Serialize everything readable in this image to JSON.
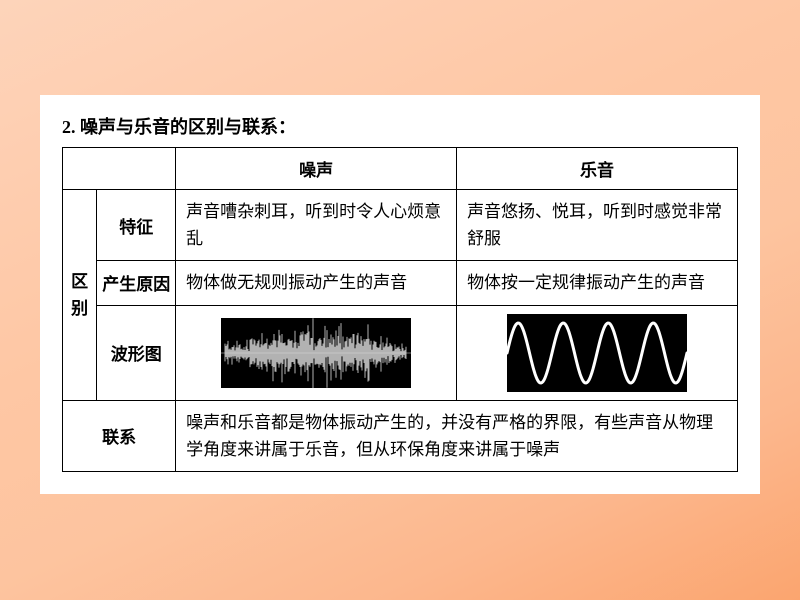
{
  "title": "2. 噪声与乐音的区别与联系：",
  "table": {
    "headers": {
      "col1": "噪声",
      "col2": "乐音"
    },
    "qubie_label": "区别",
    "rows": {
      "feature": {
        "label": "特征",
        "noise": "声音嘈杂刺耳，听到时令人心烦意乱",
        "music": "声音悠扬、悦耳，听到时感觉非常舒服"
      },
      "cause": {
        "label": "产生原因",
        "noise": "物体做无规则振动产生的声音",
        "music": "物体按一定规律振动产生的声音"
      },
      "wave": {
        "label": "波形图"
      },
      "relation": {
        "label": "联系",
        "text": "噪声和乐音都是物体振动产生的，并没有严格的界限，有些声音从物理学角度来讲属于乐音，但从环保角度来讲属于噪声"
      }
    }
  },
  "style": {
    "noise_wave": {
      "bg": "#000000",
      "stroke": "#dcdcdc"
    },
    "sine_wave": {
      "bg": "#000000",
      "stroke": "#ffffff",
      "stroke_width": 3,
      "cycles": 4,
      "amplitude": 30,
      "ymid": 39,
      "width": 180,
      "height": 78
    }
  }
}
